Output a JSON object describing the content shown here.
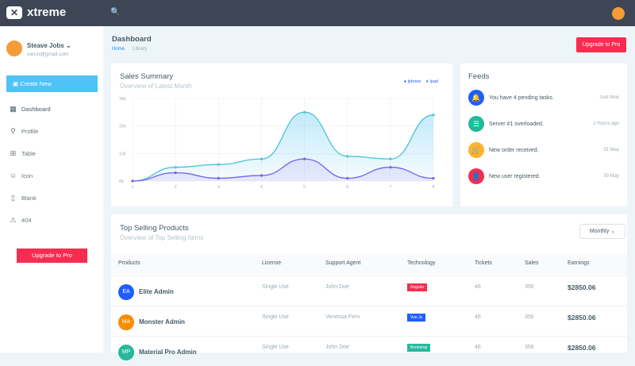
{
  "app": {
    "name": "xtreme"
  },
  "user": {
    "name": "Steave Jobs",
    "email": "varun@gmail.com"
  },
  "sidebar": {
    "create_label": "Create New",
    "items": [
      {
        "label": "Dashboard",
        "icon": "grid-icon"
      },
      {
        "label": "Profile",
        "icon": "user-icon"
      },
      {
        "label": "Table",
        "icon": "table-icon"
      },
      {
        "label": "Icon",
        "icon": "smile-icon"
      },
      {
        "label": "Blank",
        "icon": "file-icon"
      },
      {
        "label": "404",
        "icon": "alert-icon"
      }
    ],
    "upgrade_label": "Upgrade to Pro"
  },
  "header": {
    "title": "Dashboard",
    "breadcrumb": [
      "Home",
      "Library"
    ],
    "upgrade_label": "Upgrade to Pro"
  },
  "sales": {
    "title": "Sales Summary",
    "subtitle": "Overview of Latest Month",
    "legend": [
      "Iphone",
      "Ipad"
    ]
  },
  "chart_data": {
    "type": "area",
    "x": [
      1,
      2,
      3,
      4,
      5,
      6,
      7,
      8
    ],
    "yticks": [
      "0k",
      "10k",
      "20k",
      "30k"
    ],
    "ylim": [
      0,
      30000
    ],
    "grid": true,
    "legend": "top-right",
    "series": [
      {
        "name": "Iphone",
        "color": "#4fc3f7",
        "values": [
          0,
          5000,
          6000,
          8000,
          25000,
          9000,
          8000,
          24000
        ]
      },
      {
        "name": "Ipad",
        "color": "#7460ee",
        "values": [
          0,
          3000,
          1000,
          2000,
          8000,
          1000,
          5000,
          1000
        ]
      }
    ]
  },
  "feeds": {
    "title": "Feeds",
    "items": [
      {
        "text": "You have 4 pending tasks.",
        "time": "Just Now",
        "color": "#1e5eff",
        "icon": "bell-icon",
        "glyph": "🔔"
      },
      {
        "text": "Server #1 overloaded.",
        "time": "2 Hours ago",
        "color": "#26b89a",
        "icon": "server-icon",
        "glyph": "☰"
      },
      {
        "text": "New order received.",
        "time": "31 May",
        "color": "#ffb22b",
        "icon": "cart-icon",
        "glyph": "🛒"
      },
      {
        "text": "New user registered.",
        "time": "30 May",
        "color": "#f62d51",
        "icon": "user-icon",
        "glyph": "👤"
      }
    ]
  },
  "products": {
    "title": "Top Selling Products",
    "subtitle": "Overview of Top Selling Items",
    "filter": "Monthly",
    "columns": [
      "Products",
      "License",
      "Support Agent",
      "Technology",
      "Tickets",
      "Sales",
      "Earnings"
    ],
    "rows": [
      {
        "initials": "EA",
        "name": "Elite Admin",
        "license": "Single Use",
        "agent": "John Doe",
        "tech": "Angular",
        "tech_color": "#f62d51",
        "tickets": "46",
        "sales": "356",
        "earnings": "$2850.06",
        "color": "#1e5eff"
      },
      {
        "initials": "MA",
        "name": "Monster Admin",
        "license": "Single Use",
        "agent": "Venessa Fern",
        "tech": "Vue Js",
        "tech_color": "#1e5eff",
        "tickets": "46",
        "sales": "356",
        "earnings": "$2850.06",
        "color": "#fb8c00"
      },
      {
        "initials": "MP",
        "name": "Material Pro Admin",
        "license": "Single Use",
        "agent": "John Doe",
        "tech": "Bootstrap",
        "tech_color": "#26b89a",
        "tickets": "46",
        "sales": "356",
        "earnings": "$2850.06",
        "color": "#26b89a"
      }
    ]
  }
}
